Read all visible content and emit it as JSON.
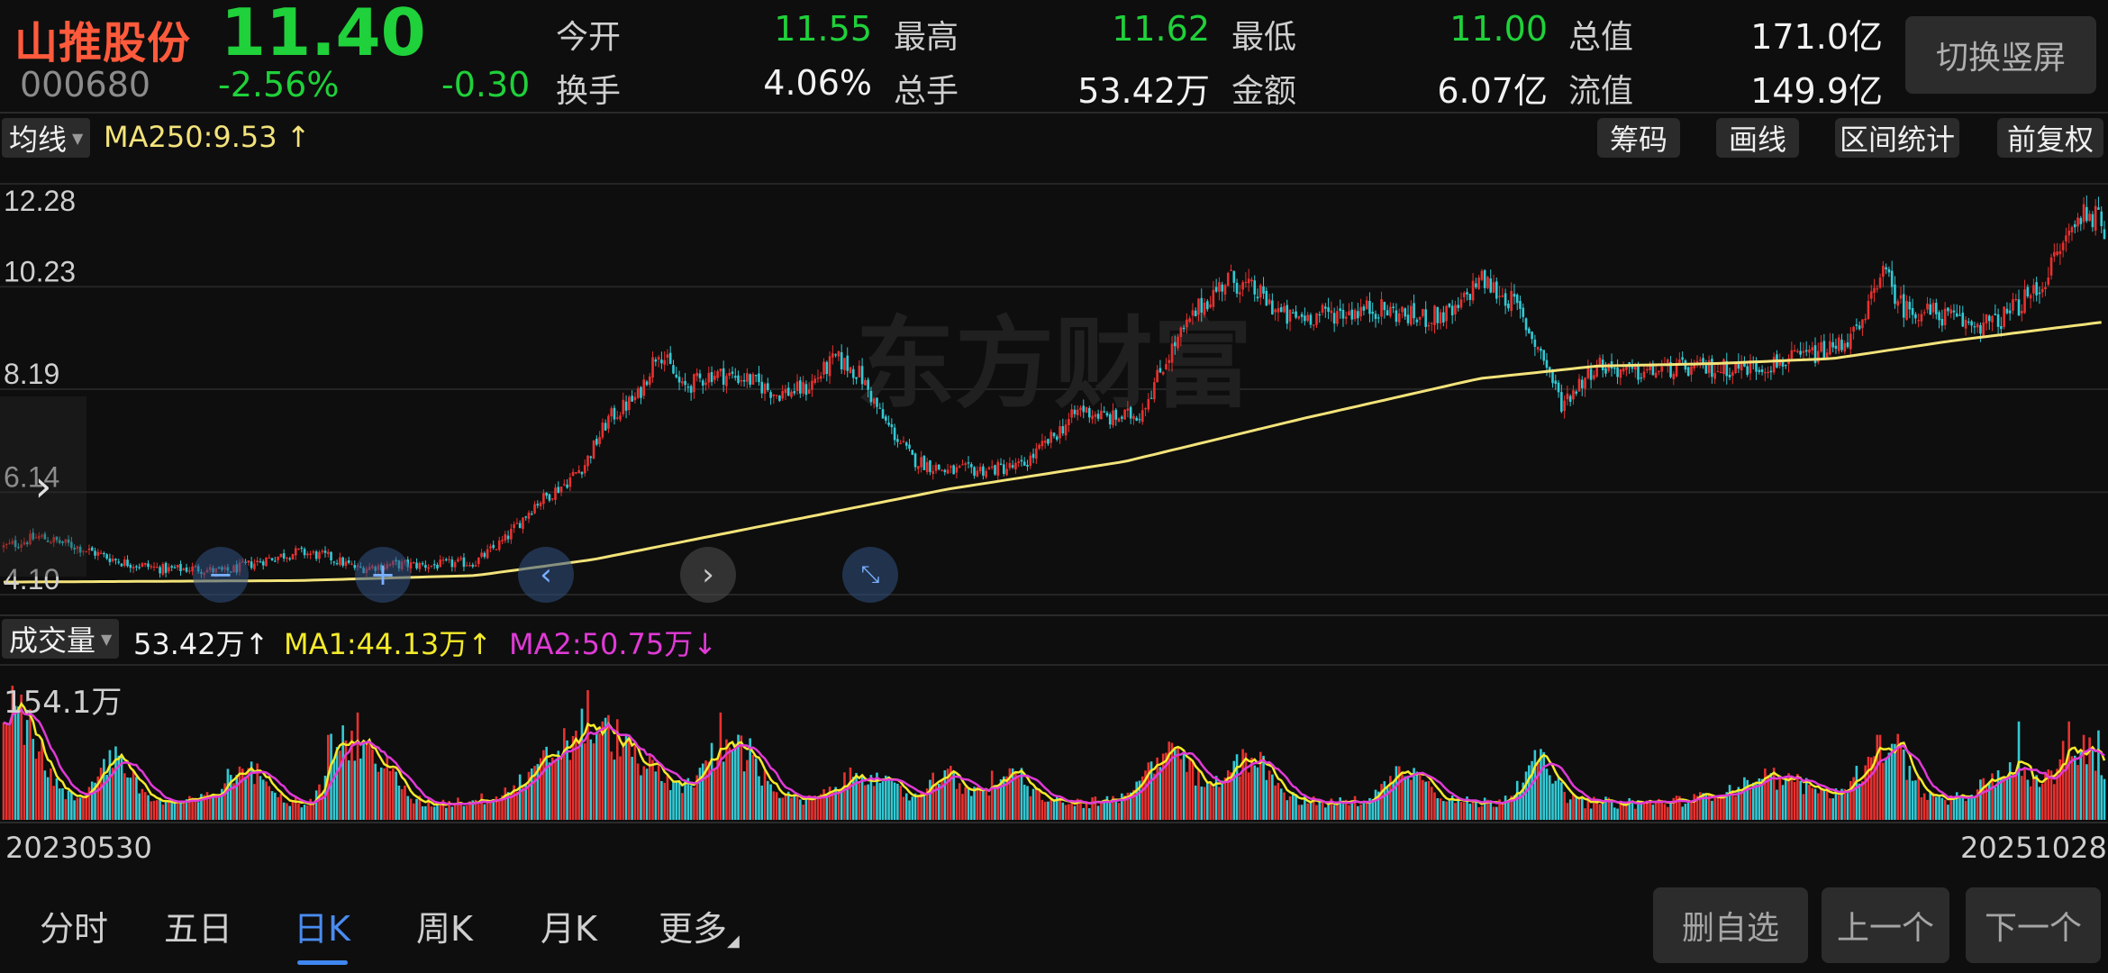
{
  "header": {
    "stock_name": "山推股份",
    "price": "11.40",
    "code": "000680",
    "change_pct": "-2.56%",
    "change": "-0.30",
    "stats": [
      {
        "label": "今开",
        "value": "11.55",
        "color": "green"
      },
      {
        "label": "最高",
        "value": "11.62",
        "color": "green"
      },
      {
        "label": "最低",
        "value": "11.00",
        "color": "green"
      },
      {
        "label": "总值",
        "value": "171.0亿",
        "color": "white"
      },
      {
        "label": "换手",
        "value": "4.06%",
        "color": "white"
      },
      {
        "label": "总手",
        "value": "53.42万",
        "color": "white"
      },
      {
        "label": "金额",
        "value": "6.07亿",
        "color": "white"
      },
      {
        "label": "流值",
        "value": "149.9亿",
        "color": "white"
      }
    ],
    "switch_button": "切换竖屏"
  },
  "price_panel": {
    "indicator_select": "均线",
    "ma_label": "MA250:9.53",
    "ma_arrow": "↑",
    "tools": [
      "筹码",
      "画线",
      "区间统计",
      "前复权"
    ],
    "y_ticks": [
      "12.28",
      "10.23",
      "8.19",
      "6.14",
      "4.10"
    ],
    "watermark": "东方财富",
    "colors": {
      "up": "#e8312f",
      "down": "#33c9d4",
      "ma250": "#f3e37a"
    }
  },
  "volume_panel": {
    "indicator_select": "成交量",
    "vol_label": "53.42万",
    "vol_arrow": "↑",
    "ma1_label": "MA1:44.13万",
    "ma1_arrow": "↑",
    "ma2_label": "MA2:50.75万",
    "ma2_arrow": "↓",
    "max_label": "154.1万",
    "colors": {
      "ma1": "#f3ea2a",
      "ma2": "#e03ad6"
    }
  },
  "date_axis": {
    "start": "20230530",
    "end": "20251028"
  },
  "bottom_tabs": [
    {
      "label": "分时",
      "active": false
    },
    {
      "label": "五日",
      "active": false
    },
    {
      "label": "日K",
      "active": true
    },
    {
      "label": "周K",
      "active": false
    },
    {
      "label": "月K",
      "active": false
    },
    {
      "label": "更多",
      "active": false
    }
  ],
  "bottom_buttons": [
    "删自选",
    "上一个",
    "下一个"
  ],
  "overlay_icons": [
    "expand-arrow-icon",
    "zoom-out-icon",
    "zoom-in-icon",
    "pan-left-icon",
    "pan-right-icon",
    "collapse-icon"
  ],
  "chart_data": {
    "type": "candlestick",
    "y_range": [
      4.1,
      12.28
    ],
    "anchors": [
      [
        0,
        5.05
      ],
      [
        12,
        5.25
      ],
      [
        25,
        5.05
      ],
      [
        40,
        4.75
      ],
      [
        55,
        4.6
      ],
      [
        65,
        4.62
      ],
      [
        75,
        4.55
      ],
      [
        90,
        4.82
      ],
      [
        100,
        4.95
      ],
      [
        110,
        4.85
      ],
      [
        120,
        4.62
      ],
      [
        132,
        4.7
      ],
      [
        145,
        4.68
      ],
      [
        160,
        4.75
      ],
      [
        170,
        5.2
      ],
      [
        180,
        5.9
      ],
      [
        190,
        6.3
      ],
      [
        197,
        6.7
      ],
      [
        205,
        7.6
      ],
      [
        215,
        8.05
      ],
      [
        222,
        9.0
      ],
      [
        230,
        8.2
      ],
      [
        240,
        8.5
      ],
      [
        252,
        8.4
      ],
      [
        262,
        8.1
      ],
      [
        272,
        8.2
      ],
      [
        282,
        8.8
      ],
      [
        290,
        8.5
      ],
      [
        298,
        7.6
      ],
      [
        308,
        6.8
      ],
      [
        320,
        6.55
      ],
      [
        335,
        6.6
      ],
      [
        345,
        6.65
      ],
      [
        355,
        7.2
      ],
      [
        365,
        7.8
      ],
      [
        375,
        7.6
      ],
      [
        385,
        7.7
      ],
      [
        395,
        8.9
      ],
      [
        405,
        9.8
      ],
      [
        415,
        10.4
      ],
      [
        425,
        10.1
      ],
      [
        435,
        9.6
      ],
      [
        450,
        9.7
      ],
      [
        465,
        9.8
      ],
      [
        480,
        9.6
      ],
      [
        492,
        9.7
      ],
      [
        500,
        10.4
      ],
      [
        512,
        9.9
      ],
      [
        522,
        8.8
      ],
      [
        528,
        7.9
      ],
      [
        540,
        8.7
      ],
      [
        552,
        8.5
      ],
      [
        565,
        8.6
      ],
      [
        580,
        8.6
      ],
      [
        595,
        8.65
      ],
      [
        608,
        8.8
      ],
      [
        620,
        9.0
      ],
      [
        630,
        9.4
      ],
      [
        636,
        10.6
      ],
      [
        644,
        9.8
      ],
      [
        655,
        9.7
      ],
      [
        665,
        9.5
      ],
      [
        675,
        9.5
      ],
      [
        690,
        10.2
      ],
      [
        700,
        11.3
      ],
      [
        706,
        11.8
      ],
      [
        712,
        11.4
      ]
    ],
    "ma250_anchors": [
      [
        0,
        4.35
      ],
      [
        100,
        4.38
      ],
      [
        160,
        4.48
      ],
      [
        200,
        4.8
      ],
      [
        260,
        5.5
      ],
      [
        320,
        6.2
      ],
      [
        380,
        6.75
      ],
      [
        440,
        7.6
      ],
      [
        500,
        8.4
      ],
      [
        540,
        8.65
      ],
      [
        580,
        8.7
      ],
      [
        620,
        8.8
      ],
      [
        660,
        9.15
      ],
      [
        712,
        9.53
      ]
    ],
    "volume_max": 154.1,
    "volume_spikes": [
      [
        3,
        150
      ],
      [
        6,
        140
      ],
      [
        110,
        95
      ],
      [
        120,
        120
      ],
      [
        198,
        145
      ],
      [
        203,
        110
      ],
      [
        243,
        120
      ],
      [
        245,
        90
      ],
      [
        248,
        85
      ],
      [
        335,
        55
      ],
      [
        398,
        80
      ],
      [
        421,
        75
      ],
      [
        472,
        60
      ],
      [
        519,
        78
      ],
      [
        636,
        95
      ],
      [
        640,
        85
      ],
      [
        683,
        110
      ],
      [
        700,
        110
      ],
      [
        705,
        95
      ],
      [
        710,
        100
      ]
    ],
    "volume_bumps": [
      [
        5,
        110,
        10
      ],
      [
        38,
        60,
        8
      ],
      [
        82,
        40,
        10
      ],
      [
        114,
        75,
        6
      ],
      [
        126,
        60,
        8
      ],
      [
        200,
        90,
        22
      ],
      [
        247,
        72,
        12
      ],
      [
        292,
        35,
        12
      ],
      [
        320,
        35,
        8
      ],
      [
        342,
        38,
        8
      ],
      [
        395,
        65,
        10
      ],
      [
        422,
        60,
        10
      ],
      [
        476,
        40,
        10
      ],
      [
        520,
        50,
        8
      ],
      [
        600,
        30,
        20
      ],
      [
        638,
        75,
        10
      ],
      [
        680,
        38,
        12
      ],
      [
        704,
        70,
        10
      ]
    ]
  }
}
